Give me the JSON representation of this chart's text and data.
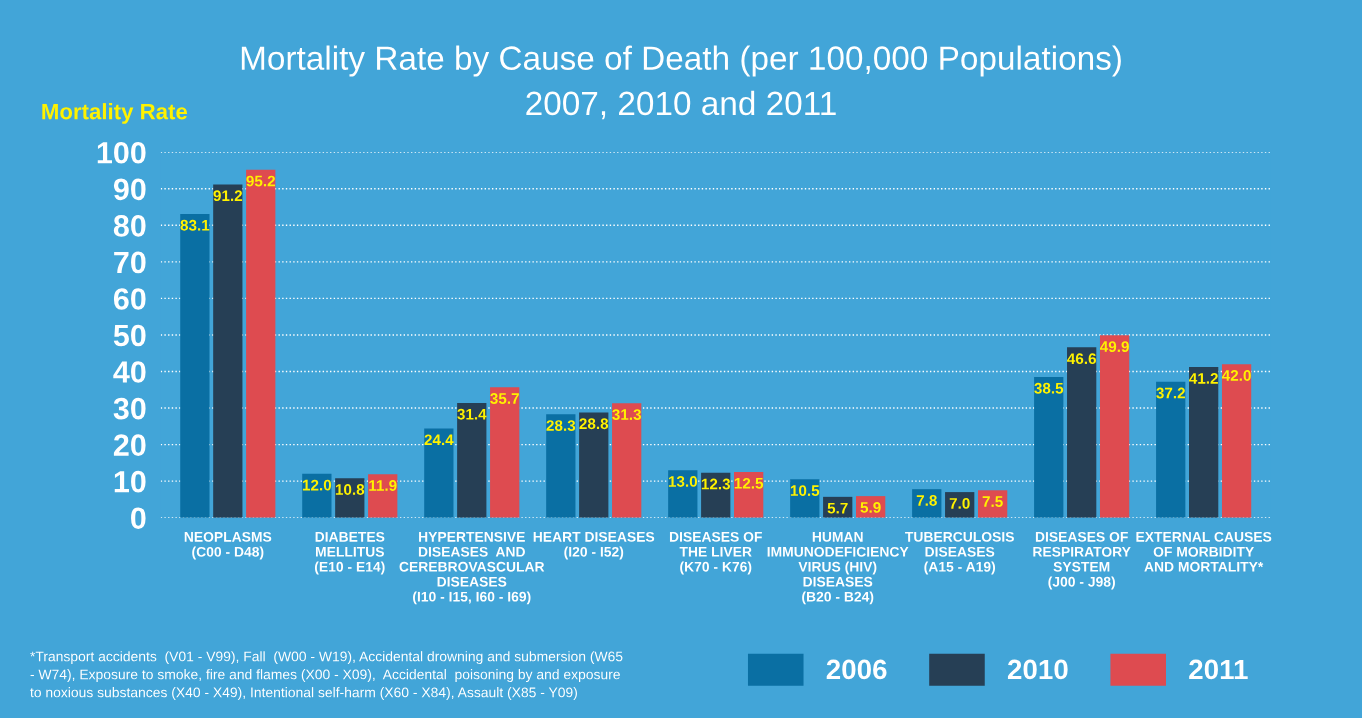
{
  "chart_data": {
    "type": "bar",
    "title": "Mortality Rate by Cause of Death (per 100,000 Populations)",
    "subtitle": "2007, 2010 and 2011",
    "ylabel": "Mortality Rate",
    "categories": [
      "NEOPLASMS\n(C00 - D48)",
      "DIABETES\nMELLITUS\n(E10 - E14)",
      "HYPERTENSIVE\nDISEASES  AND\nCEREBROVASCULAR\nDISEASES\n(I10 - I15, I60 - I69)",
      "HEART DISEASES\n(I20 - I52)",
      "DISEASES OF\nTHE LIVER\n(K70 - K76)",
      "HUMAN\nIMMUNODEFICIENCY\nVIRUS (HIV)\nDISEASES\n(B20 - B24)",
      "TUBERCULOSIS\nDISEASES\n(A15 - A19)",
      "DISEASES OF\nRESPIRATORY\nSYSTEM\n(J00 - J98)",
      "EXTERNAL CAUSES\nOF MORBIDITY\nAND MORTALITY*"
    ],
    "series": [
      {
        "name": "2006",
        "color": "#0a6fa3",
        "values": [
          83.1,
          12.0,
          24.4,
          28.3,
          13.0,
          10.5,
          7.8,
          38.5,
          37.2
        ],
        "value_labels": [
          "83.1",
          "12.0",
          "24.4",
          "28.3",
          "13.0",
          "10.5",
          "7.8",
          "38.5",
          "37.2"
        ]
      },
      {
        "name": "2010",
        "color": "#263f55",
        "values": [
          91.2,
          10.8,
          31.4,
          28.8,
          12.3,
          5.7,
          7.0,
          46.6,
          41.2
        ],
        "value_labels": [
          "91.2",
          "10.8",
          "31.4",
          "28.8",
          "12.3",
          "5.7",
          "7.0",
          "46.6",
          "41.2"
        ]
      },
      {
        "name": "2011",
        "color": "#de4b50",
        "values": [
          95.2,
          11.9,
          35.7,
          31.3,
          12.5,
          5.9,
          7.5,
          49.9,
          42.0
        ],
        "value_labels": [
          "95.2",
          "11.9",
          "35.7",
          "31.3",
          "12.5",
          "5.9",
          "7.5",
          "49.9",
          "42.0"
        ]
      }
    ],
    "ylim": [
      0,
      100
    ],
    "yticks": [
      0,
      10,
      20,
      30,
      40,
      50,
      60,
      70,
      80,
      90,
      100
    ],
    "grid": "y",
    "legend": "bottom right",
    "annotations": [
      "*Transport accidents  (V01 - V99), Fall  (W00 - W19), Accidental drowning and submersion (W65 - W74), Exposure to smoke, fire and flames (X00 - X09),  Accidental  poisoning by and exposure to noxious substances (X40 - X49), Intentional self-harm (X60 - X84), Assault (X85 - Y09)"
    ]
  }
}
